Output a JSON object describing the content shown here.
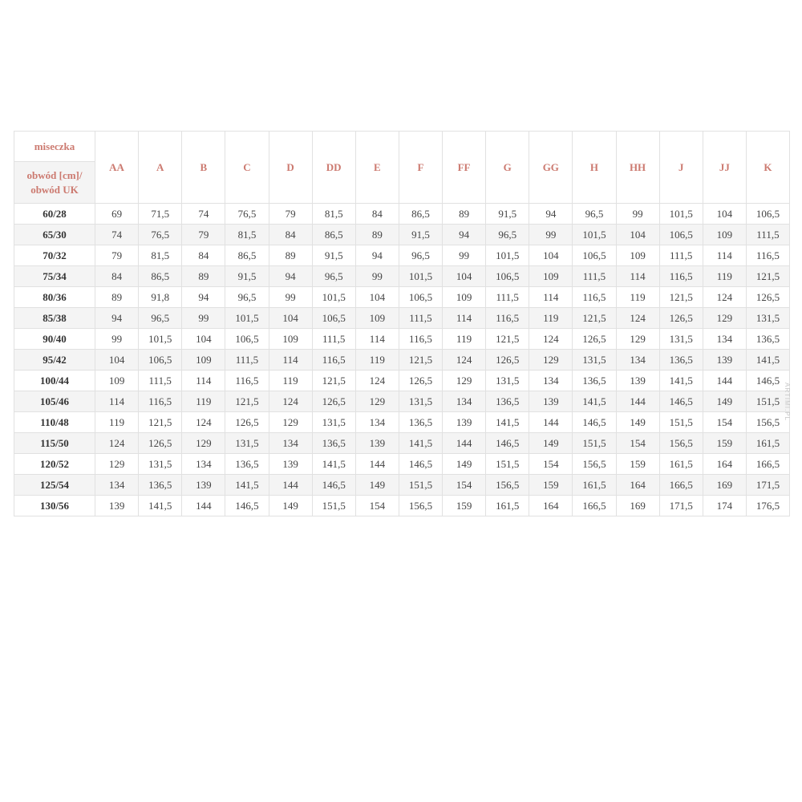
{
  "watermark": "ARTIMI.PL",
  "colors": {
    "header_text": "#cc7a70",
    "row_stripe": "#f4f4f4",
    "border": "#e1e1e1",
    "cell_text": "#454545",
    "row_label_text": "#333333",
    "watermark_text": "#c6c6c6"
  },
  "table": {
    "corner_top": "miseczka",
    "corner_bottom_line1": "obwód [cm]/",
    "corner_bottom_line2": "obwód UK",
    "columns": [
      "AA",
      "A",
      "B",
      "C",
      "D",
      "DD",
      "E",
      "F",
      "FF",
      "G",
      "GG",
      "H",
      "HH",
      "J",
      "JJ",
      "K"
    ],
    "rows": [
      {
        "label": "60/28",
        "values": [
          "69",
          "71,5",
          "74",
          "76,5",
          "79",
          "81,5",
          "84",
          "86,5",
          "89",
          "91,5",
          "94",
          "96,5",
          "99",
          "101,5",
          "104",
          "106,5"
        ]
      },
      {
        "label": "65/30",
        "values": [
          "74",
          "76,5",
          "79",
          "81,5",
          "84",
          "86,5",
          "89",
          "91,5",
          "94",
          "96,5",
          "99",
          "101,5",
          "104",
          "106,5",
          "109",
          "111,5"
        ]
      },
      {
        "label": "70/32",
        "values": [
          "79",
          "81,5",
          "84",
          "86,5",
          "89",
          "91,5",
          "94",
          "96,5",
          "99",
          "101,5",
          "104",
          "106,5",
          "109",
          "111,5",
          "114",
          "116,5"
        ]
      },
      {
        "label": "75/34",
        "values": [
          "84",
          "86,5",
          "89",
          "91,5",
          "94",
          "96,5",
          "99",
          "101,5",
          "104",
          "106,5",
          "109",
          "111,5",
          "114",
          "116,5",
          "119",
          "121,5"
        ]
      },
      {
        "label": "80/36",
        "values": [
          "89",
          "91,8",
          "94",
          "96,5",
          "99",
          "101,5",
          "104",
          "106,5",
          "109",
          "111,5",
          "114",
          "116,5",
          "119",
          "121,5",
          "124",
          "126,5"
        ]
      },
      {
        "label": "85/38",
        "values": [
          "94",
          "96,5",
          "99",
          "101,5",
          "104",
          "106,5",
          "109",
          "111,5",
          "114",
          "116,5",
          "119",
          "121,5",
          "124",
          "126,5",
          "129",
          "131,5"
        ]
      },
      {
        "label": "90/40",
        "values": [
          "99",
          "101,5",
          "104",
          "106,5",
          "109",
          "111,5",
          "114",
          "116,5",
          "119",
          "121,5",
          "124",
          "126,5",
          "129",
          "131,5",
          "134",
          "136,5"
        ]
      },
      {
        "label": "95/42",
        "values": [
          "104",
          "106,5",
          "109",
          "111,5",
          "114",
          "116,5",
          "119",
          "121,5",
          "124",
          "126,5",
          "129",
          "131,5",
          "134",
          "136,5",
          "139",
          "141,5"
        ]
      },
      {
        "label": "100/44",
        "values": [
          "109",
          "111,5",
          "114",
          "116,5",
          "119",
          "121,5",
          "124",
          "126,5",
          "129",
          "131,5",
          "134",
          "136,5",
          "139",
          "141,5",
          "144",
          "146,5"
        ]
      },
      {
        "label": "105/46",
        "values": [
          "114",
          "116,5",
          "119",
          "121,5",
          "124",
          "126,5",
          "129",
          "131,5",
          "134",
          "136,5",
          "139",
          "141,5",
          "144",
          "146,5",
          "149",
          "151,5"
        ]
      },
      {
        "label": "110/48",
        "values": [
          "119",
          "121,5",
          "124",
          "126,5",
          "129",
          "131,5",
          "134",
          "136,5",
          "139",
          "141,5",
          "144",
          "146,5",
          "149",
          "151,5",
          "154",
          "156,5"
        ]
      },
      {
        "label": "115/50",
        "values": [
          "124",
          "126,5",
          "129",
          "131,5",
          "134",
          "136,5",
          "139",
          "141,5",
          "144",
          "146,5",
          "149",
          "151,5",
          "154",
          "156,5",
          "159",
          "161,5"
        ]
      },
      {
        "label": "120/52",
        "values": [
          "129",
          "131,5",
          "134",
          "136,5",
          "139",
          "141,5",
          "144",
          "146,5",
          "149",
          "151,5",
          "154",
          "156,5",
          "159",
          "161,5",
          "164",
          "166,5"
        ]
      },
      {
        "label": "125/54",
        "values": [
          "134",
          "136,5",
          "139",
          "141,5",
          "144",
          "146,5",
          "149",
          "151,5",
          "154",
          "156,5",
          "159",
          "161,5",
          "164",
          "166,5",
          "169",
          "171,5"
        ]
      },
      {
        "label": "130/56",
        "values": [
          "139",
          "141,5",
          "144",
          "146,5",
          "149",
          "151,5",
          "154",
          "156,5",
          "159",
          "161,5",
          "164",
          "166,5",
          "169",
          "171,5",
          "174",
          "176,5"
        ]
      }
    ]
  }
}
